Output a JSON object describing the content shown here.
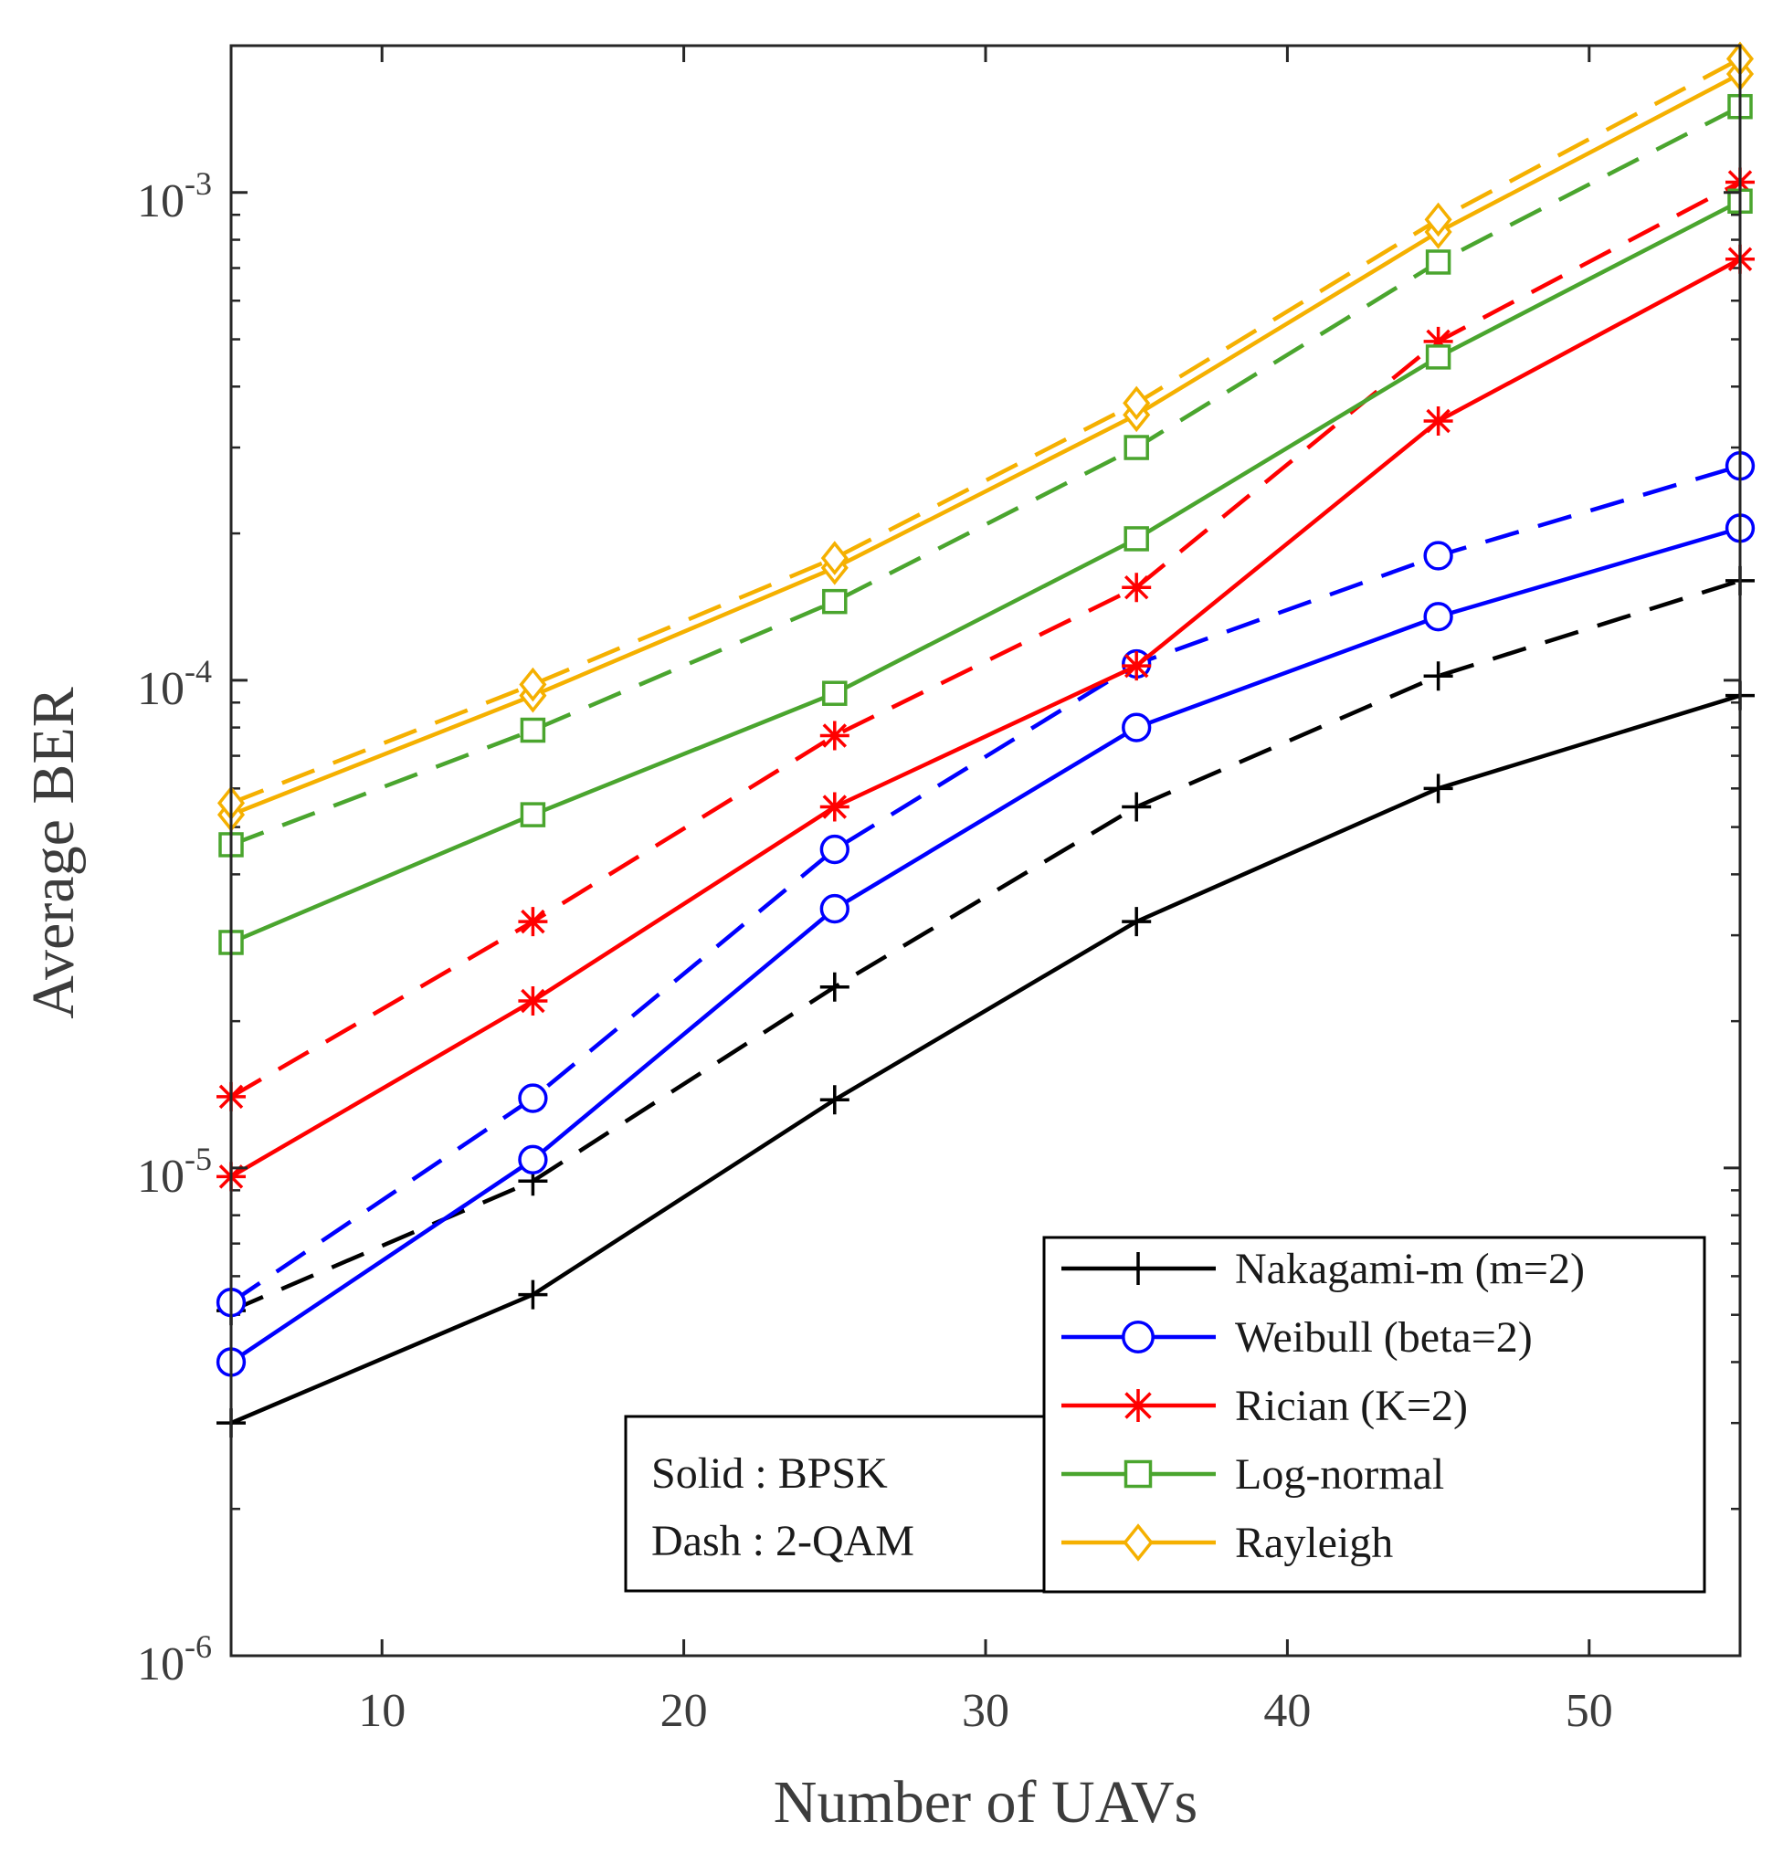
{
  "chart_data": {
    "type": "line",
    "xlabel": "Number of UAVs",
    "ylabel": "Average BER",
    "yscale": "log",
    "xlim": [
      5,
      55
    ],
    "ylim": [
      1e-06,
      0.002
    ],
    "x": [
      5,
      15,
      25,
      35,
      45,
      55
    ],
    "xticks": [
      10,
      20,
      30,
      40,
      50
    ],
    "xtick_labels": [
      "10",
      "20",
      "30",
      "40",
      "50"
    ],
    "yticks": [
      {
        "value": 1e-06,
        "base": "10",
        "exp": "-6"
      },
      {
        "value": 1e-05,
        "base": "10",
        "exp": "-5"
      },
      {
        "value": 0.0001,
        "base": "10",
        "exp": "-4"
      },
      {
        "value": 0.001,
        "base": "10",
        "exp": "-3"
      }
    ],
    "series": [
      {
        "name": "Nakagami-m (m=2)",
        "modulation": "BPSK",
        "style": "solid",
        "marker": "plus",
        "color": "#000000",
        "values": [
          3e-06,
          5.5e-06,
          1.38e-05,
          3.2e-05,
          6e-05,
          9.3e-05
        ]
      },
      {
        "name": "Nakagami-m (m=2)",
        "modulation": "2-QAM",
        "style": "dash",
        "marker": "plus",
        "color": "#000000",
        "values": [
          5.1e-06,
          9.4e-06,
          2.35e-05,
          5.5e-05,
          0.000102,
          0.00016
        ]
      },
      {
        "name": "Weibull (beta=2)",
        "modulation": "BPSK",
        "style": "solid",
        "marker": "circle",
        "color": "#0000ff",
        "values": [
          4e-06,
          1.04e-05,
          3.4e-05,
          8e-05,
          0.000135,
          0.000205
        ]
      },
      {
        "name": "Weibull (beta=2)",
        "modulation": "2-QAM",
        "style": "dash",
        "marker": "circle",
        "color": "#0000ff",
        "values": [
          5.3e-06,
          1.39e-05,
          4.5e-05,
          0.000108,
          0.00018,
          0.000275
        ]
      },
      {
        "name": "Rician (K=2)",
        "modulation": "BPSK",
        "style": "solid",
        "marker": "asterisk",
        "color": "#ff0000",
        "values": [
          9.6e-06,
          2.2e-05,
          5.5e-05,
          0.000107,
          0.00034,
          0.00073
        ]
      },
      {
        "name": "Rician (K=2)",
        "modulation": "2-QAM",
        "style": "dash",
        "marker": "asterisk",
        "color": "#ff0000",
        "values": [
          1.4e-05,
          3.2e-05,
          7.7e-05,
          0.000155,
          0.000495,
          0.00105
        ]
      },
      {
        "name": "Log-normal",
        "modulation": "BPSK",
        "style": "solid",
        "marker": "square",
        "color": "#4aa52e",
        "values": [
          2.9e-05,
          5.3e-05,
          9.4e-05,
          0.000195,
          0.00046,
          0.00096
        ]
      },
      {
        "name": "Log-normal",
        "modulation": "2-QAM",
        "style": "dash",
        "marker": "square",
        "color": "#4aa52e",
        "values": [
          4.6e-05,
          7.9e-05,
          0.000145,
          0.0003,
          0.00072,
          0.0015
        ]
      },
      {
        "name": "Rayleigh",
        "modulation": "BPSK",
        "style": "solid",
        "marker": "diamond",
        "color": "#f5b000",
        "values": [
          5.3e-05,
          9.3e-05,
          0.00017,
          0.00035,
          0.00083,
          0.00175
        ]
      },
      {
        "name": "Rayleigh",
        "modulation": "2-QAM",
        "style": "dash",
        "marker": "diamond",
        "color": "#f5b000",
        "values": [
          5.6e-05,
          9.8e-05,
          0.000178,
          0.00037,
          0.00088,
          0.00188
        ]
      }
    ],
    "legend": {
      "placement": "bottom-right",
      "entries": [
        {
          "label": "Nakagami-m (m=2)",
          "marker": "plus",
          "color": "#000000"
        },
        {
          "label": "Weibull (beta=2)",
          "marker": "circle",
          "color": "#0000ff"
        },
        {
          "label": "Rician (K=2)",
          "marker": "asterisk",
          "color": "#ff0000"
        },
        {
          "label": "Log-normal",
          "marker": "square",
          "color": "#4aa52e"
        },
        {
          "label": "Rayleigh",
          "marker": "diamond",
          "color": "#f5b000"
        }
      ]
    },
    "annotation": {
      "lines": [
        "Solid : BPSK",
        "Dash : 2-QAM"
      ]
    }
  }
}
